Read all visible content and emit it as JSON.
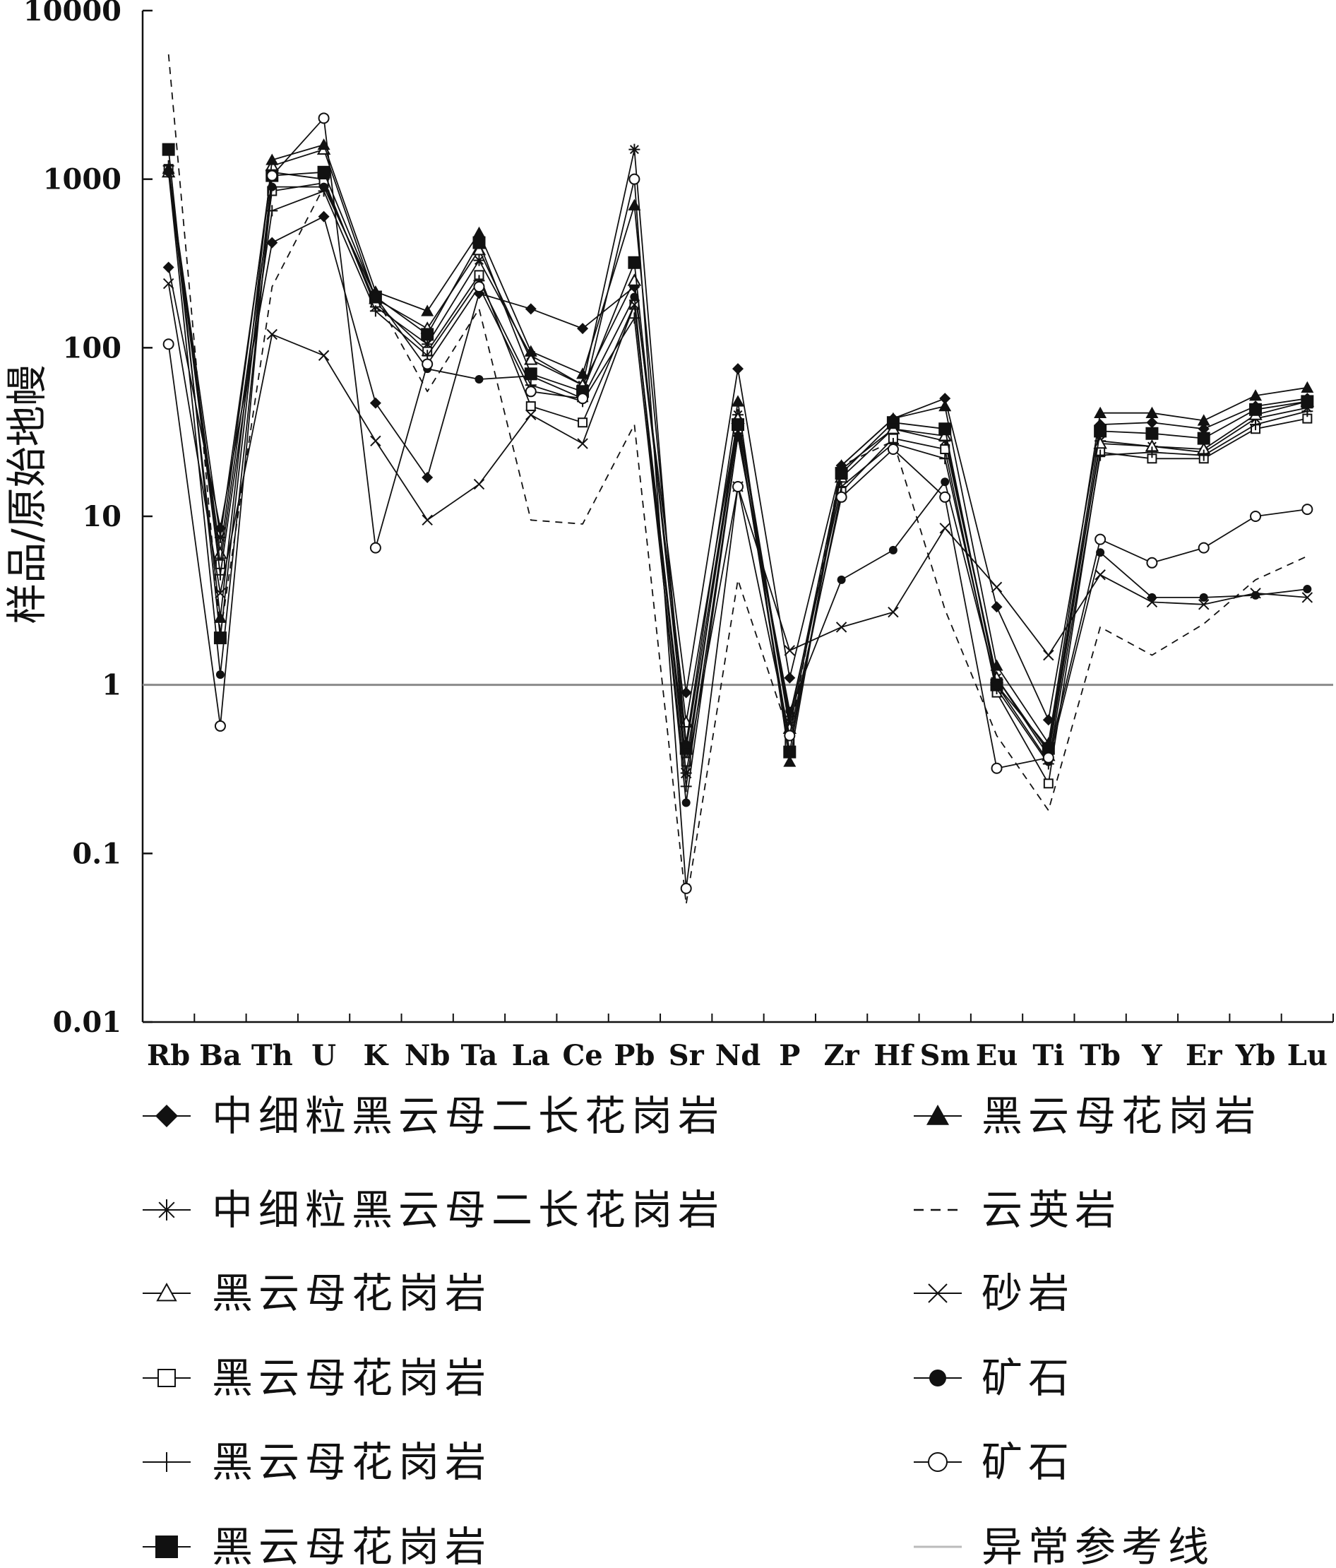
{
  "chart_data": {
    "type": "line",
    "ylabel": "样品/原始地幔",
    "y_scale": "log",
    "ylim": [
      0.01,
      10000
    ],
    "y_ticks": [
      "0.01",
      "0.1",
      "1",
      "10",
      "100",
      "1000",
      "10000"
    ],
    "categories": [
      "Rb",
      "Ba",
      "Th",
      "U",
      "K",
      "Nb",
      "Ta",
      "La",
      "Ce",
      "Pb",
      "Sr",
      "Nd",
      "P",
      "Zr",
      "Hf",
      "Sm",
      "Eu",
      "Ti",
      "Tb",
      "Y",
      "Er",
      "Yb",
      "Lu"
    ],
    "reference_line_value": 1,
    "series": [
      {
        "name": "中细粒黑云母二长花岗岩",
        "marker": "filled-diamond",
        "line": "solid",
        "values": [
          300,
          8.5,
          420,
          600,
          47,
          17,
          210,
          170,
          130,
          230,
          0.9,
          75,
          1.1,
          20,
          38,
          50,
          2.9,
          0.62,
          35,
          36,
          33,
          45,
          50
        ]
      },
      {
        "name": "中细粒黑云母二长花岗岩",
        "marker": "asterisk",
        "line": "solid",
        "values": [
          1100,
          7.5,
          1100,
          1000,
          175,
          105,
          330,
          90,
          60,
          1500,
          0.3,
          40,
          0.6,
          19,
          33,
          28,
          1.1,
          0.4,
          28,
          26,
          24,
          38,
          44
        ]
      },
      {
        "name": "黑云母花岗岩",
        "marker": "open-triangle",
        "line": "solid",
        "values": [
          1100,
          6,
          1200,
          1500,
          195,
          130,
          380,
          85,
          60,
          250,
          0.6,
          38,
          0.55,
          17,
          33,
          30,
          1.1,
          0.38,
          27,
          26,
          25,
          40,
          48
        ]
      },
      {
        "name": "黑云母花岗岩",
        "marker": "open-square",
        "line": "solid",
        "values": [
          1150,
          5.2,
          850,
          950,
          185,
          95,
          270,
          45,
          36,
          180,
          0.35,
          33,
          0.45,
          14,
          29,
          25,
          0.9,
          0.26,
          24,
          22,
          22,
          33,
          38
        ]
      },
      {
        "name": "黑云母花岗岩",
        "marker": "plus",
        "line": "solid",
        "values": [
          1200,
          4.5,
          650,
          850,
          165,
          90,
          250,
          60,
          48,
          150,
          0.25,
          30,
          0.65,
          15,
          27,
          22,
          0.95,
          0.34,
          23,
          24,
          23,
          35,
          42
        ]
      },
      {
        "name": "黑云母花岗岩",
        "marker": "filled-square",
        "line": "solid",
        "values": [
          1500,
          1.9,
          1050,
          1100,
          200,
          120,
          420,
          70,
          55,
          320,
          0.42,
          35,
          0.4,
          18,
          36,
          33,
          1.0,
          0.42,
          32,
          31,
          29,
          43,
          48
        ]
      },
      {
        "name": "黑云母花岗岩",
        "marker": "filled-triangle",
        "line": "solid",
        "values": [
          1150,
          2.5,
          1300,
          1600,
          215,
          165,
          480,
          95,
          70,
          700,
          0.45,
          48,
          0.35,
          20,
          38,
          45,
          1.3,
          0.45,
          41,
          41,
          37,
          52,
          58
        ]
      },
      {
        "name": "云英岩",
        "marker": "none",
        "line": "dashed",
        "values": [
          5500,
          2,
          230,
          900,
          200,
          55,
          170,
          9.5,
          9,
          35,
          0.05,
          4.2,
          0.5,
          20,
          28,
          2.8,
          0.5,
          0.18,
          2.2,
          1.5,
          2.3,
          4.2,
          5.8
        ]
      },
      {
        "name": "砂岩",
        "marker": "x",
        "line": "solid",
        "values": [
          240,
          3.5,
          120,
          90,
          28,
          9.5,
          15.5,
          40,
          27,
          180,
          0.3,
          15,
          1.6,
          2.2,
          2.7,
          8.5,
          3.8,
          1.5,
          4.5,
          3.1,
          3.0,
          3.5,
          3.3
        ]
      },
      {
        "name": "矿石",
        "marker": "filled-circle",
        "line": "solid",
        "values": [
          1100,
          1.15,
          900,
          900,
          200,
          75,
          65,
          68,
          50,
          200,
          0.2,
          30,
          0.7,
          4.2,
          6.3,
          16,
          1.0,
          0.35,
          6.1,
          3.3,
          3.3,
          3.4,
          3.7
        ]
      },
      {
        "name": "矿石",
        "marker": "open-circle",
        "line": "solid",
        "values": [
          105,
          0.57,
          1050,
          2300,
          6.5,
          80,
          230,
          55,
          50,
          1000,
          0.062,
          15,
          0.5,
          13,
          25,
          13,
          0.32,
          0.37,
          7.3,
          5.3,
          6.5,
          10,
          11
        ]
      }
    ],
    "legend": {
      "position": "bottom",
      "left_column": [
        "中细粒黑云母二长花岗岩",
        "中细粒黑云母二长花岗岩",
        "黑云母花岗岩",
        "黑云母花岗岩",
        "黑云母花岗岩",
        "黑云母花岗岩"
      ],
      "right_column": [
        "黑云母花岗岩",
        "云英岩",
        "砂岩",
        "矿石",
        "矿石",
        "异常参考线"
      ],
      "left_markers": [
        "filled-diamond",
        "asterisk",
        "open-triangle",
        "open-square",
        "plus",
        "filled-square"
      ],
      "right_markers": [
        "filled-triangle",
        "dashed-line",
        "x",
        "filled-circle",
        "open-circle",
        "gray-line"
      ]
    },
    "colors": {
      "axis": "#111111",
      "series": "#111111",
      "reference_line": "#8a8a8a",
      "legend_reference_line": "#bbbbbb"
    },
    "grid": false
  }
}
